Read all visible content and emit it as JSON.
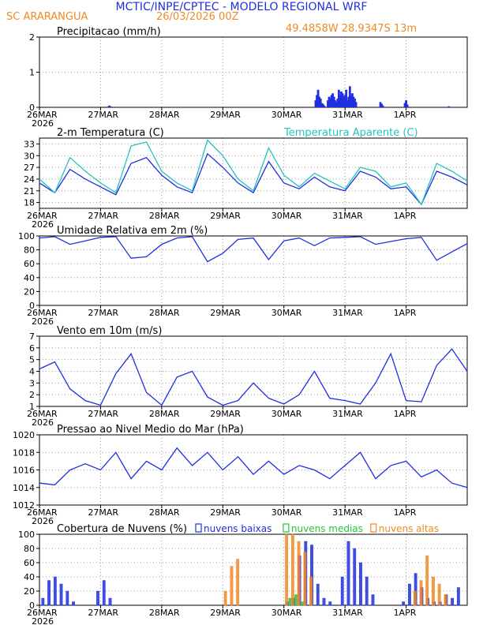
{
  "header": {
    "title": "MCTIC/INPE/CPTEC - MODELO REGIONAL WRF",
    "station": "SC ARARANGUA",
    "run": "26/03/2026 00Z",
    "location": "49.4858W 28.9347S 13m",
    "title_color": "#1f2fe0",
    "sub_color": "#f08a24"
  },
  "axis": {
    "x_tick_labels": [
      "26MAR",
      "27MAR",
      "28MAR",
      "29MAR",
      "30MAR",
      "31MAR",
      "1APR"
    ],
    "year_label": "2026",
    "days_span": 7
  },
  "chart_data": [
    {
      "type": "bar",
      "title": "Precipitacao (mm/h)",
      "y_ticks": [
        "0",
        "1",
        "2"
      ],
      "ylim": [
        0,
        2
      ],
      "color": "#1f2fe0",
      "x": [
        1.12,
        1.14,
        1.16,
        4.52,
        4.54,
        4.56,
        4.58,
        4.6,
        4.62,
        4.64,
        4.66,
        4.72,
        4.74,
        4.76,
        4.78,
        4.8,
        4.82,
        4.84,
        4.86,
        4.88,
        4.9,
        4.92,
        4.94,
        4.96,
        4.98,
        5.0,
        5.02,
        5.04,
        5.06,
        5.08,
        5.1,
        5.12,
        5.14,
        5.16,
        5.18,
        5.58,
        5.6,
        5.62,
        5.98,
        6.0,
        6.02,
        6.7
      ],
      "values": [
        0.02,
        0.05,
        0.03,
        0.2,
        0.35,
        0.5,
        0.3,
        0.25,
        0.12,
        0.1,
        0.05,
        0.2,
        0.3,
        0.25,
        0.35,
        0.4,
        0.3,
        0.2,
        0.15,
        0.25,
        0.5,
        0.35,
        0.45,
        0.4,
        0.3,
        0.35,
        0.5,
        0.2,
        0.3,
        0.6,
        0.35,
        0.4,
        0.3,
        0.25,
        0.15,
        0.15,
        0.1,
        0.05,
        0.12,
        0.2,
        0.08,
        0.03
      ]
    },
    {
      "type": "line",
      "title": "2-m Temperatura (C)",
      "legend": "Temperatura Aparente (C)",
      "y_ticks": [
        "18",
        "21",
        "24",
        "27",
        "30",
        "33"
      ],
      "ylim": [
        16.5,
        34.5
      ],
      "x": [
        0,
        0.25,
        0.5,
        0.75,
        1.0,
        1.25,
        1.5,
        1.75,
        2.0,
        2.25,
        2.5,
        2.75,
        3.0,
        3.25,
        3.5,
        3.75,
        4.0,
        4.25,
        4.5,
        4.75,
        5.0,
        5.25,
        5.5,
        5.75,
        6.0,
        6.25,
        6.5,
        6.75,
        7.0
      ],
      "series": [
        {
          "name": "2-m Temperatura (C)",
          "color": "#1f2fe0",
          "values": [
            23,
            20.5,
            26.5,
            24,
            22,
            20,
            28,
            29.5,
            25,
            22,
            20.5,
            30.5,
            27,
            23,
            20.5,
            28.5,
            23,
            21.5,
            24.5,
            22,
            21,
            26,
            24.5,
            21.5,
            22,
            17.5,
            26,
            24.5,
            22.5
          ]
        },
        {
          "name": "Temperatura Aparente (C)",
          "color": "#25c2c2",
          "values": [
            24,
            20.5,
            29.5,
            26,
            23,
            20.5,
            32.5,
            33.5,
            26,
            23,
            21,
            34,
            30,
            24,
            21,
            32,
            25,
            22,
            25.5,
            23.5,
            21.5,
            27,
            26,
            22,
            23,
            17.5,
            28,
            26,
            23.5
          ]
        }
      ]
    },
    {
      "type": "line",
      "title": "Umidade Relativa em 2m (%)",
      "y_ticks": [
        "0",
        "20",
        "40",
        "60",
        "80",
        "100"
      ],
      "ylim": [
        0,
        100
      ],
      "x": [
        0,
        0.25,
        0.5,
        0.75,
        1.0,
        1.25,
        1.5,
        1.75,
        2.0,
        2.25,
        2.5,
        2.75,
        3.0,
        3.25,
        3.5,
        3.75,
        4.0,
        4.25,
        4.5,
        4.75,
        5.0,
        5.25,
        5.5,
        5.75,
        6.0,
        6.25,
        6.5,
        6.75,
        7.0
      ],
      "series": [
        {
          "name": "Umidade Relativa",
          "color": "#1f2fe0",
          "values": [
            97,
            99,
            88,
            93,
            98,
            99,
            68,
            70,
            88,
            97,
            99,
            63,
            75,
            95,
            97,
            66,
            93,
            97,
            86,
            97,
            98,
            99,
            88,
            92,
            96,
            98,
            65,
            77,
            89
          ]
        }
      ]
    },
    {
      "type": "line",
      "title": "Vento em 10m (m/s)",
      "y_ticks": [
        "1",
        "2",
        "3",
        "4",
        "5",
        "6",
        "7"
      ],
      "ylim": [
        1,
        7
      ],
      "x": [
        0,
        0.25,
        0.5,
        0.75,
        1.0,
        1.25,
        1.5,
        1.75,
        2.0,
        2.25,
        2.5,
        2.75,
        3.0,
        3.25,
        3.5,
        3.75,
        4.0,
        4.25,
        4.5,
        4.75,
        5.0,
        5.25,
        5.5,
        5.75,
        6.0,
        6.25,
        6.5,
        6.75,
        7.0
      ],
      "series": [
        {
          "name": "Velocidade do Vento",
          "color": "#1f2fe0",
          "values": [
            4.2,
            4.8,
            2.5,
            1.5,
            1.1,
            3.8,
            5.5,
            2.2,
            1.1,
            3.5,
            4.0,
            1.8,
            1.1,
            1.5,
            3.0,
            1.7,
            1.2,
            2.0,
            4.0,
            1.7,
            1.5,
            1.2,
            3.0,
            5.5,
            1.5,
            1.4,
            4.5,
            5.9,
            4.0
          ]
        }
      ]
    },
    {
      "type": "line",
      "title": "Pressao ao Nivel Medio do Mar (hPa)",
      "y_ticks": [
        "1012",
        "1014",
        "1016",
        "1018",
        "1020"
      ],
      "ylim": [
        1012,
        1020
      ],
      "x": [
        0,
        0.25,
        0.5,
        0.75,
        1.0,
        1.25,
        1.5,
        1.75,
        2.0,
        2.25,
        2.5,
        2.75,
        3.0,
        3.25,
        3.5,
        3.75,
        4.0,
        4.25,
        4.5,
        4.75,
        5.0,
        5.25,
        5.5,
        5.75,
        6.0,
        6.25,
        6.5,
        6.75,
        7.0
      ],
      "series": [
        {
          "name": "Pressao",
          "color": "#1f2fe0",
          "values": [
            1014.5,
            1014.3,
            1016.0,
            1016.7,
            1016.0,
            1018.0,
            1015.0,
            1017.0,
            1016.0,
            1018.5,
            1016.5,
            1018.0,
            1016.0,
            1017.5,
            1015.5,
            1017.0,
            1015.5,
            1016.5,
            1016.0,
            1015.0,
            1016.5,
            1018.0,
            1015.0,
            1016.5,
            1017.0,
            1015.2,
            1016.0,
            1014.5,
            1014.0
          ]
        }
      ]
    },
    {
      "type": "bar",
      "title": "Cobertura de Nuvens (%)",
      "y_ticks": [
        "0",
        "20",
        "40",
        "60",
        "80",
        "100"
      ],
      "ylim": [
        0,
        100
      ],
      "x": [
        0.1,
        0.2,
        0.3,
        0.4,
        0.5,
        0.6,
        1.0,
        1.1,
        1.2,
        3.0,
        3.1,
        3.2,
        3.7,
        3.8,
        3.9,
        4.0,
        4.1,
        4.2,
        4.3,
        4.4,
        4.5,
        4.6,
        4.7,
        4.8,
        5.0,
        5.1,
        5.2,
        5.3,
        5.4,
        5.5,
        6.0,
        6.1,
        6.2,
        6.3,
        6.4,
        6.5,
        6.6,
        6.7,
        6.8,
        6.9
      ],
      "series": [
        {
          "name": "nuvens baixas",
          "color": "#1f2fe0",
          "values": [
            10,
            35,
            40,
            30,
            20,
            5,
            20,
            35,
            10,
            0,
            0,
            0,
            0,
            0,
            0,
            0,
            5,
            10,
            70,
            90,
            85,
            30,
            10,
            5,
            40,
            90,
            80,
            60,
            40,
            15,
            5,
            30,
            45,
            25,
            10,
            5,
            5,
            15,
            10,
            25
          ]
        },
        {
          "name": "nuvens medias",
          "color": "#22c43a",
          "values": [
            0,
            0,
            0,
            0,
            0,
            0,
            0,
            0,
            0,
            0,
            0,
            0,
            0,
            0,
            0,
            0,
            10,
            15,
            5,
            0,
            0,
            0,
            0,
            0,
            0,
            0,
            0,
            0,
            0,
            0,
            0,
            0,
            0,
            0,
            0,
            0,
            0,
            0,
            0,
            0
          ]
        },
        {
          "name": "nuvens altas",
          "color": "#f08a24",
          "values": [
            0,
            0,
            0,
            0,
            0,
            0,
            0,
            0,
            0,
            20,
            55,
            65,
            0,
            0,
            0,
            100,
            100,
            90,
            75,
            40,
            0,
            0,
            0,
            0,
            0,
            0,
            0,
            0,
            0,
            0,
            0,
            20,
            35,
            70,
            40,
            30,
            15,
            0,
            0,
            0
          ]
        }
      ]
    }
  ]
}
